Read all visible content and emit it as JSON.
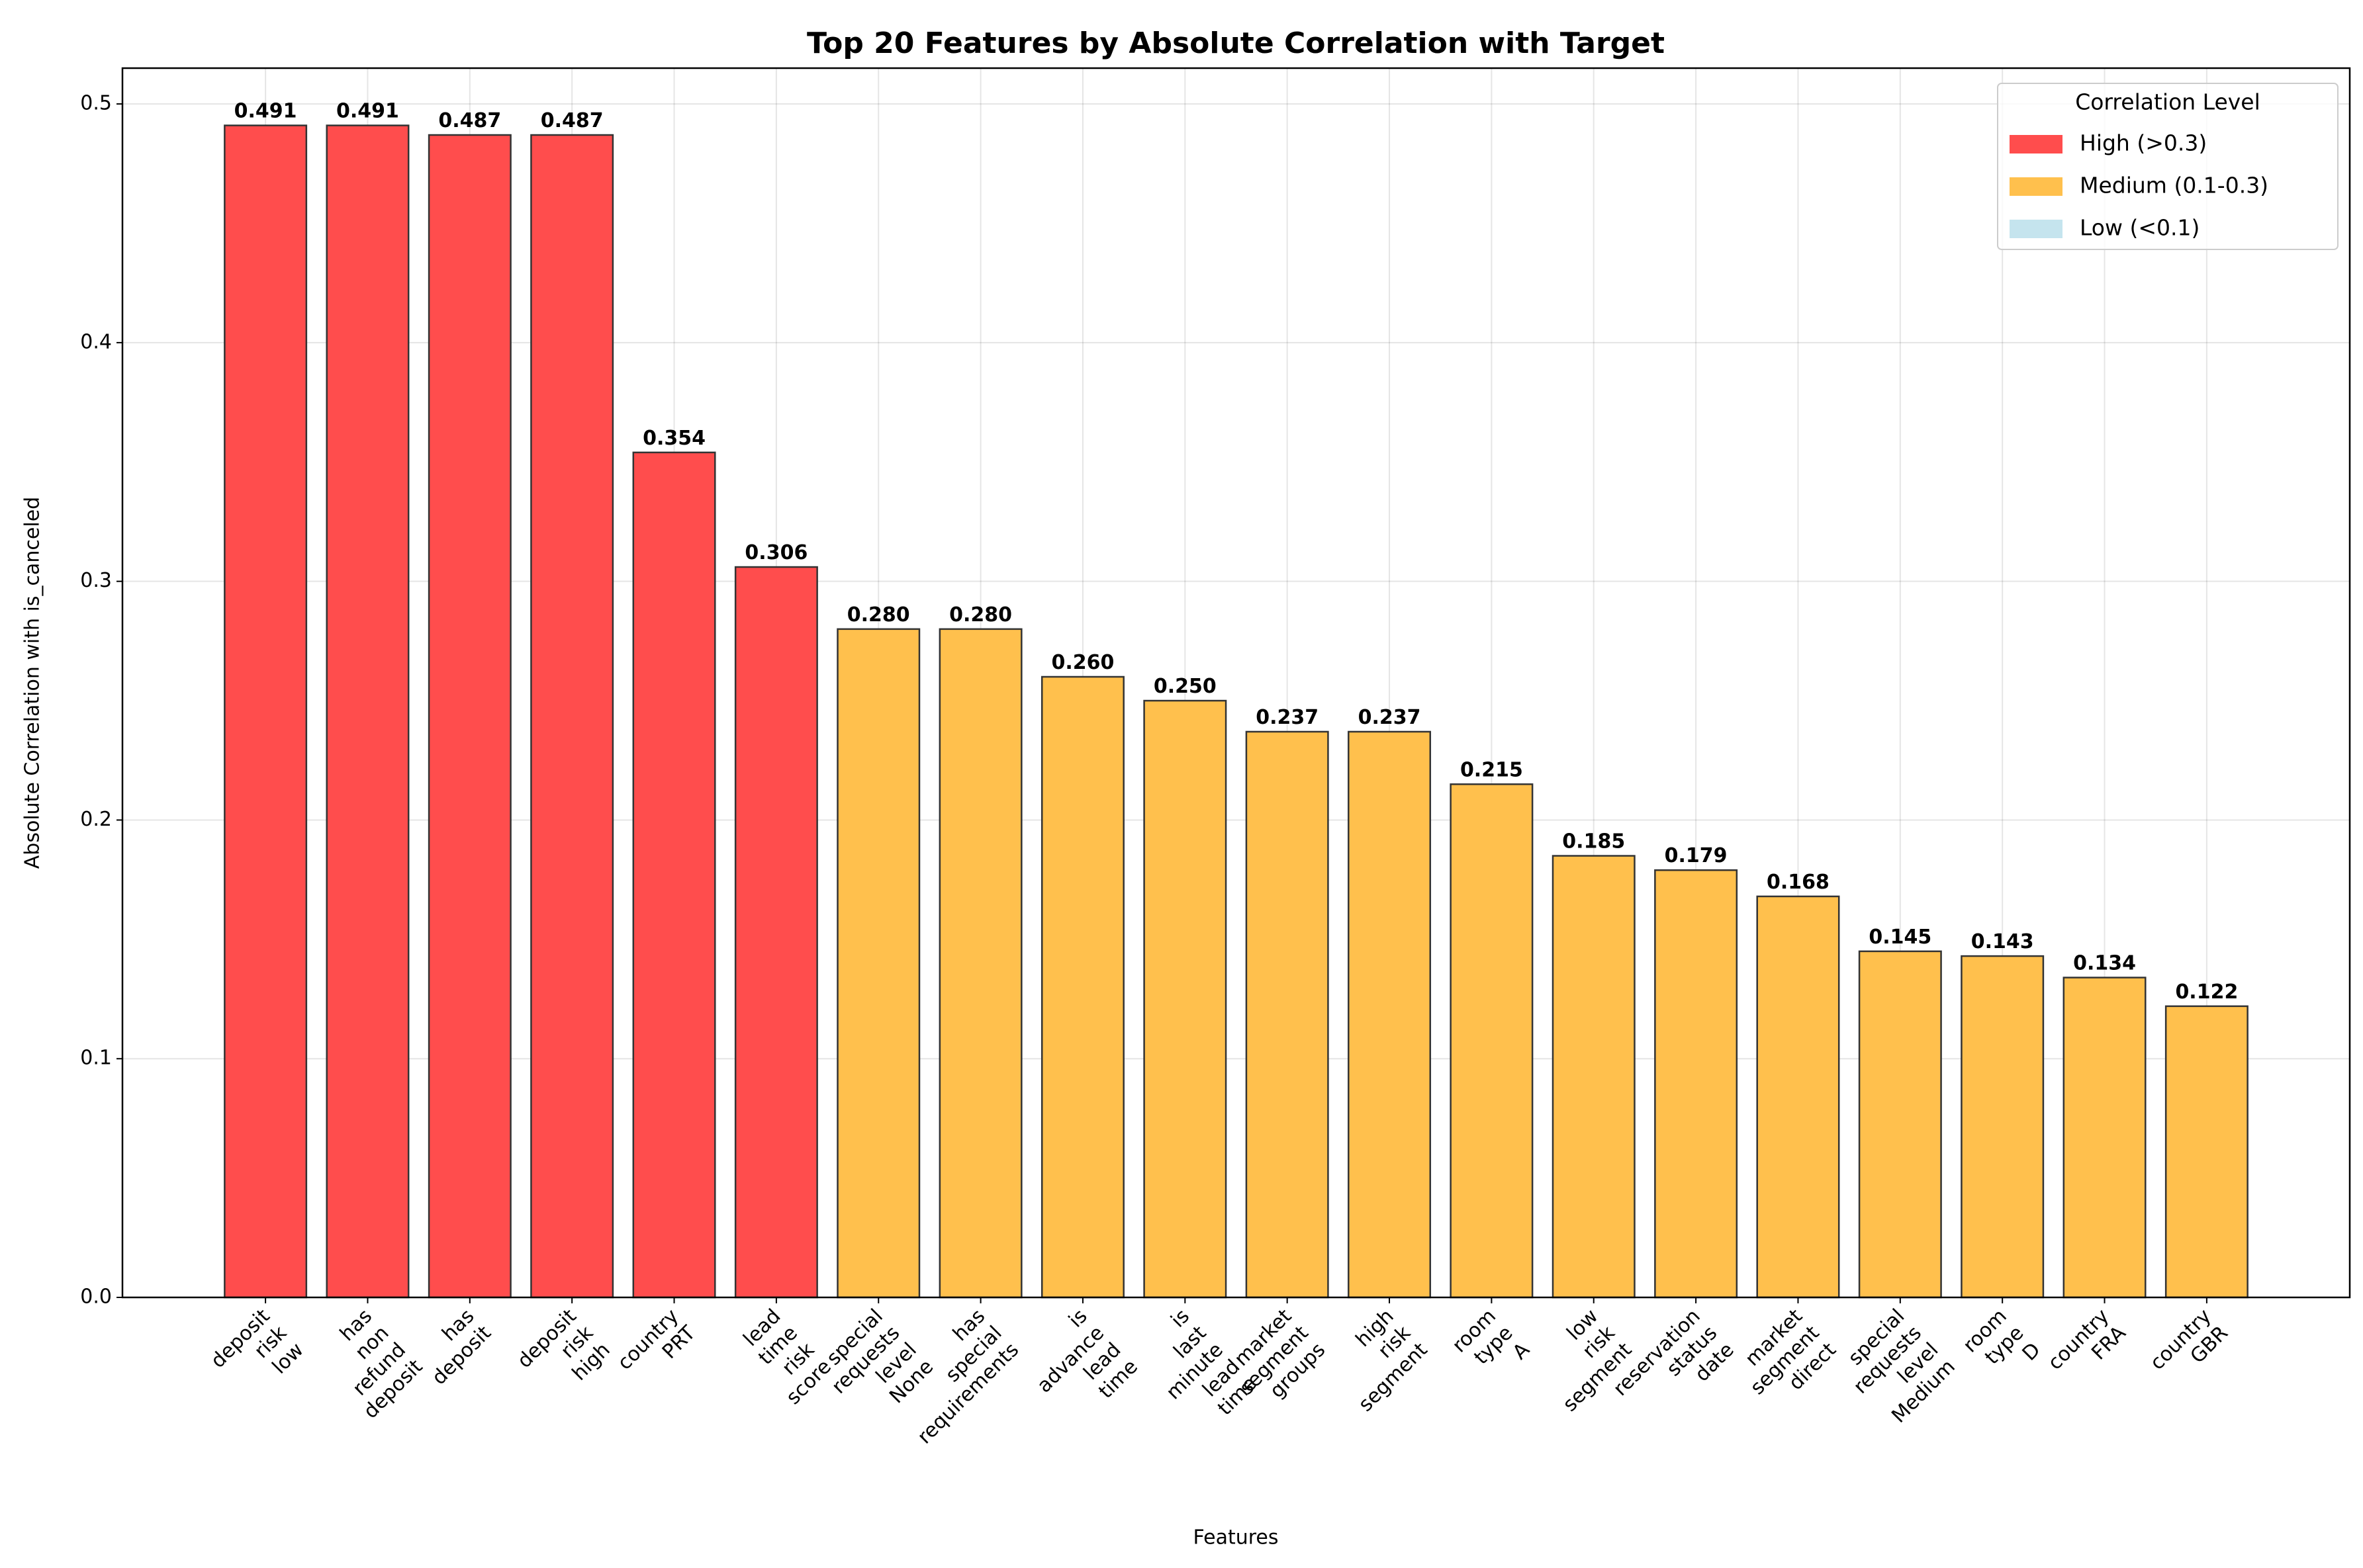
{
  "chart_data": {
    "type": "bar",
    "title": "Top 20 Features by Absolute Correlation with Target",
    "xlabel": "Features",
    "ylabel": "Absolute Correlation with is_canceled",
    "categories": [
      "deposit\nrisk\nlow",
      "has\nnon\nrefund\ndeposit",
      "has\ndeposit",
      "deposit\nrisk\nhigh",
      "country\nPRT",
      "lead\ntime\nrisk\nscore",
      "special\nrequests\nlevel\nNone",
      "has\nspecial\nrequirements",
      "is\nadvance\nlead\ntime",
      "is\nlast\nminute\nlead\ntime",
      "market\nsegment\ngroups",
      "high\nrisk\nsegment",
      "room\ntype\nA",
      "low\nrisk\nsegment",
      "reservation\nstatus\ndate",
      "market\nsegment\ndirect",
      "special\nrequests\nlevel\nMedium",
      "room\ntype\nD",
      "country\nFRA",
      "country\nGBR"
    ],
    "values": [
      0.491,
      0.491,
      0.487,
      0.487,
      0.354,
      0.306,
      0.28,
      0.28,
      0.26,
      0.25,
      0.237,
      0.237,
      0.215,
      0.185,
      0.179,
      0.168,
      0.145,
      0.143,
      0.134,
      0.122
    ],
    "value_labels": [
      "0.491",
      "0.491",
      "0.487",
      "0.487",
      "0.354",
      "0.306",
      "0.280",
      "0.280",
      "0.260",
      "0.250",
      "0.237",
      "0.237",
      "0.215",
      "0.185",
      "0.179",
      "0.168",
      "0.145",
      "0.143",
      "0.134",
      "0.122"
    ],
    "colors": [
      "#ff4d4d",
      "#ff4d4d",
      "#ff4d4d",
      "#ff4d4d",
      "#ff4d4d",
      "#ff4d4d",
      "#ffc04d",
      "#ffc04d",
      "#ffc04d",
      "#ffc04d",
      "#ffc04d",
      "#ffc04d",
      "#ffc04d",
      "#ffc04d",
      "#ffc04d",
      "#ffc04d",
      "#ffc04d",
      "#ffc04d",
      "#ffc04d",
      "#ffc04d"
    ],
    "ylim": [
      0,
      0.515
    ],
    "yticks": [
      {
        "value": 0,
        "label": "0.0"
      },
      0.1,
      0.2,
      0.3,
      0.4,
      0.5
    ],
    "grid": true,
    "legend": {
      "title": "Correlation Level",
      "position": "upper right",
      "items": [
        {
          "name": "High (>0.3)",
          "color": "#ff4d4d"
        },
        {
          "name": "Medium (0.1-0.3)",
          "color": "#ffc04d"
        },
        {
          "name": "Low (<0.1)",
          "color": "#c5e4ee"
        }
      ]
    }
  }
}
